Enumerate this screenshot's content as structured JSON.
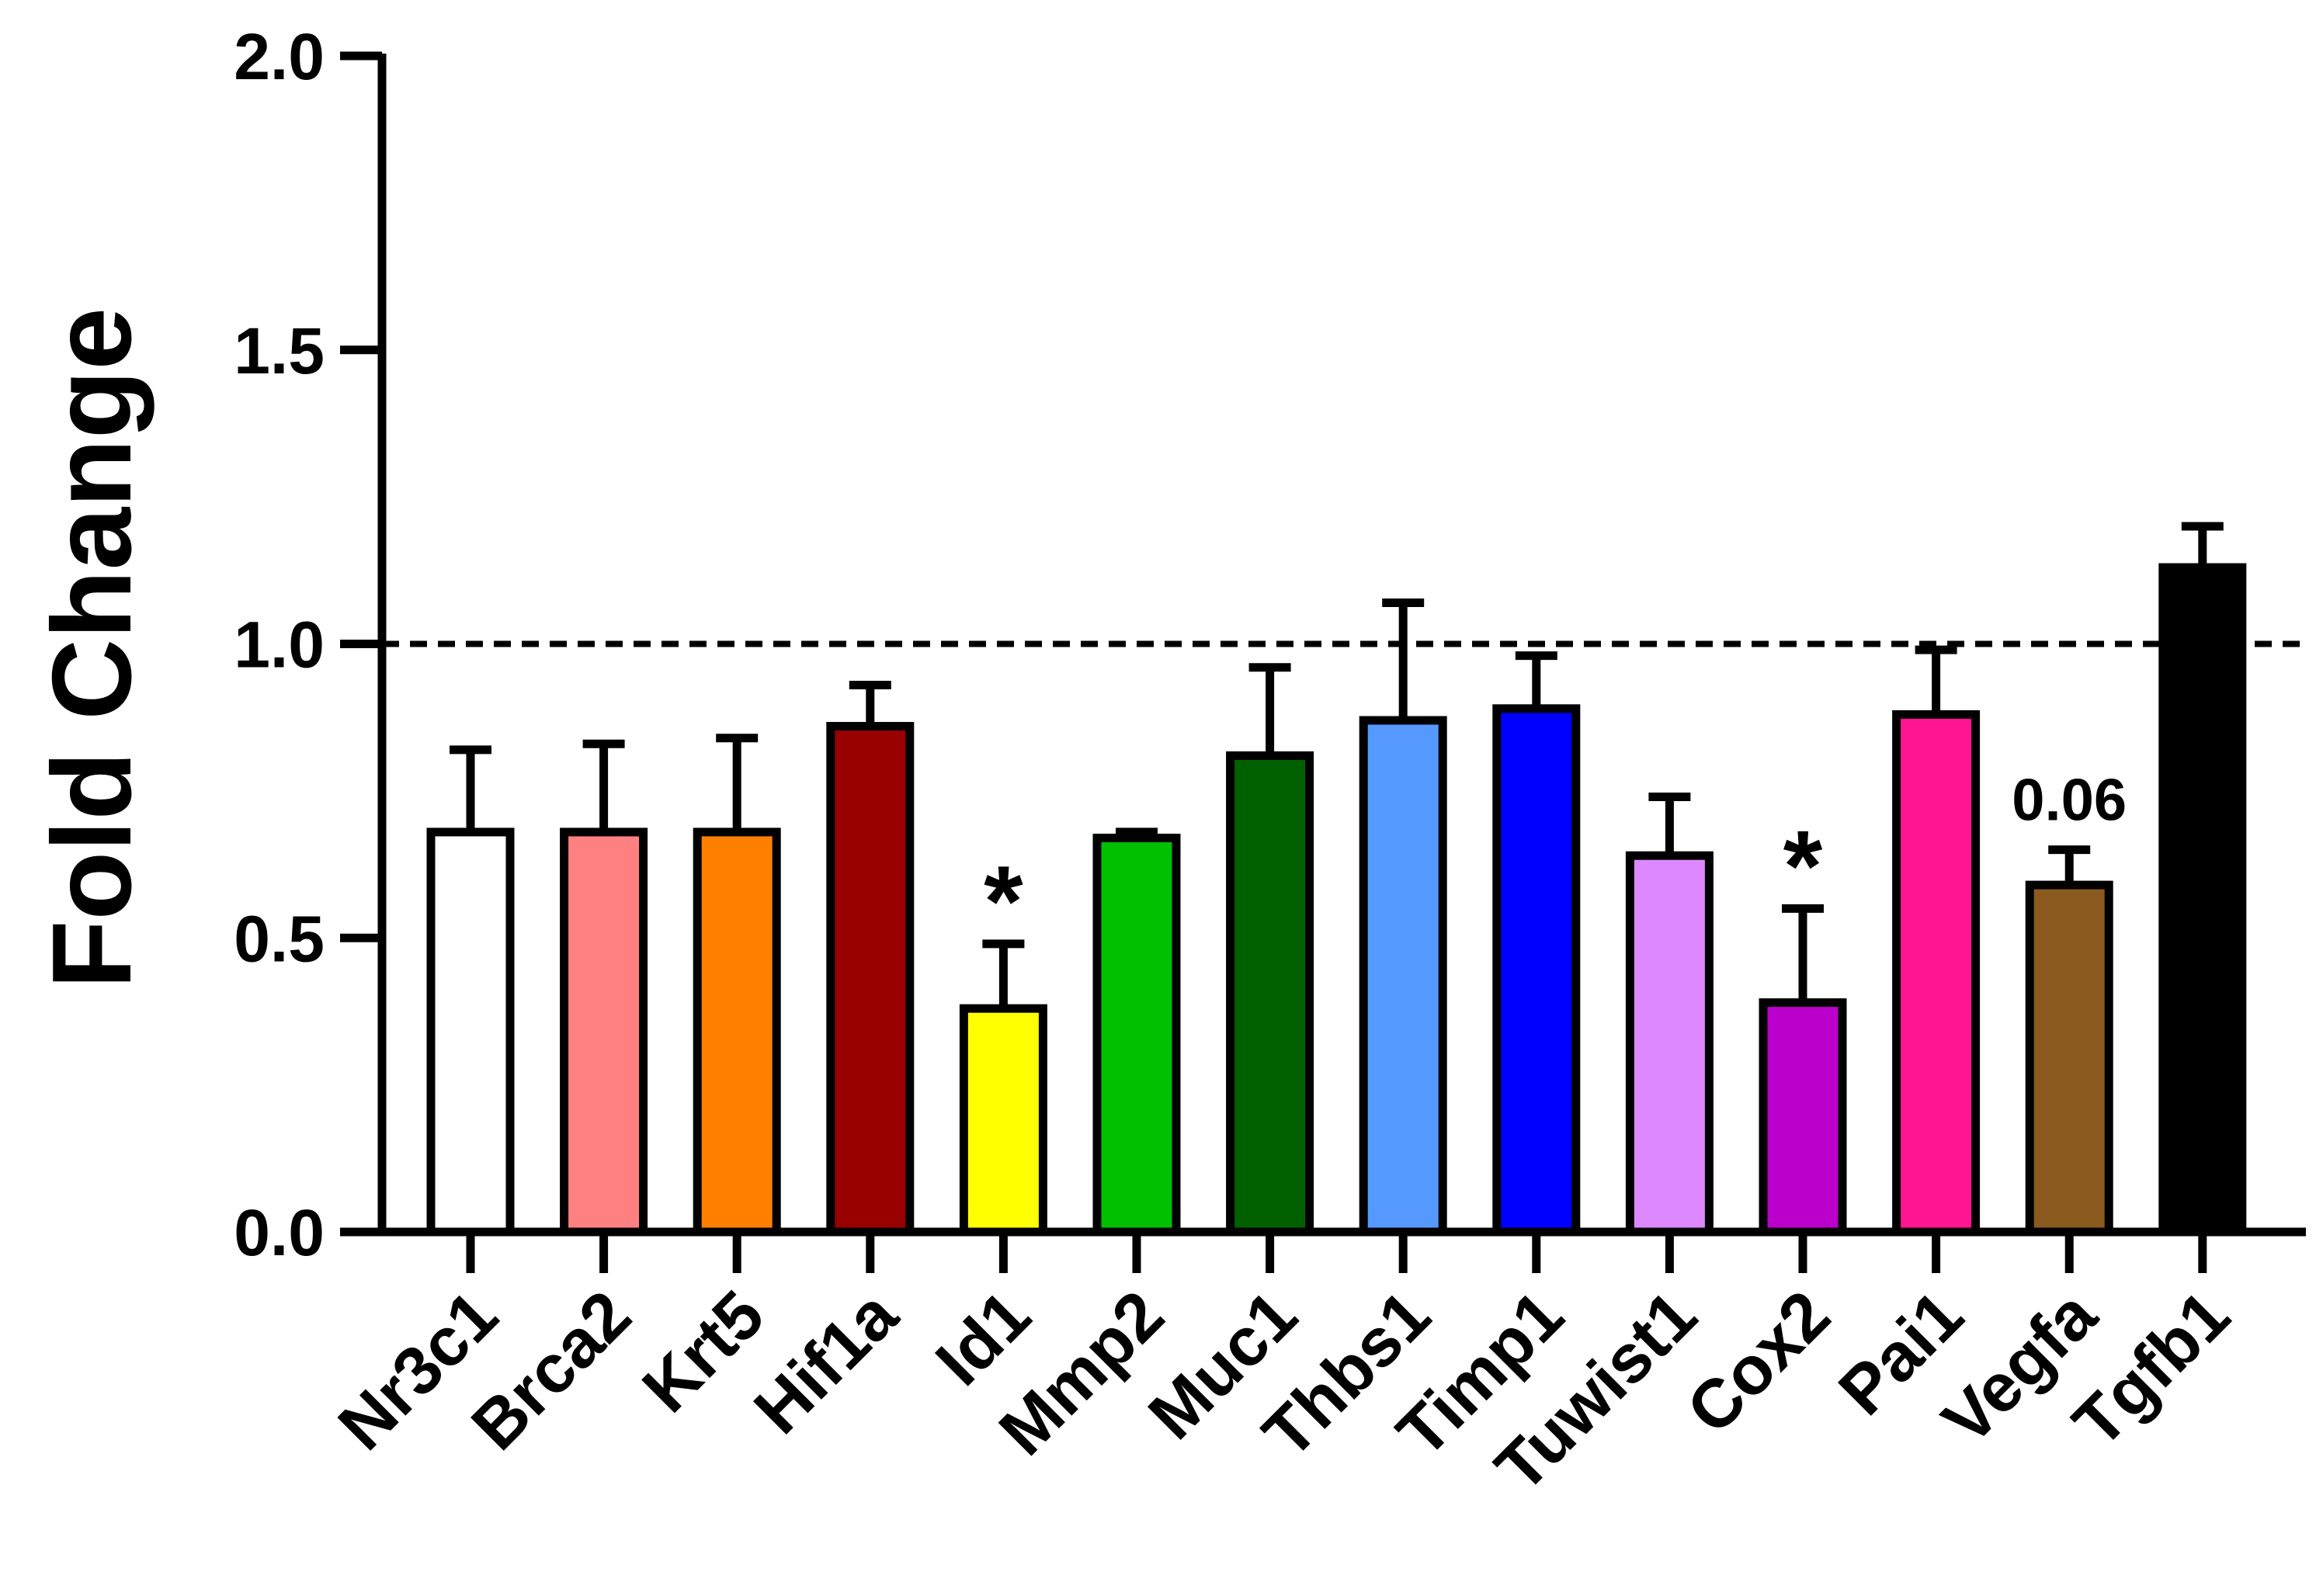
{
  "chart_data": {
    "type": "bar",
    "title": "",
    "xlabel": "",
    "ylabel": "Fold Change",
    "ylim": [
      0,
      2.0
    ],
    "yticks": [
      "0.0",
      "0.5",
      "1.0",
      "1.5",
      "2.0"
    ],
    "ytick_values": [
      0,
      0.5,
      1.0,
      1.5,
      2.0
    ],
    "reference_line": {
      "value": 1.0,
      "style": "dashed"
    },
    "grid": false,
    "categories": [
      "Nr3c1",
      "Brca2",
      "Krt5",
      "Hif1a",
      "Id1",
      "Mmp2",
      "Muc1",
      "Thbs1",
      "Timp1",
      "Tuwist1",
      "Cox2",
      "Pai1",
      "Vegfa",
      "Tgfb1"
    ],
    "values": [
      0.68,
      0.68,
      0.68,
      0.86,
      0.38,
      0.67,
      0.81,
      0.87,
      0.89,
      0.64,
      0.39,
      0.88,
      0.59,
      1.13
    ],
    "errors": [
      0.14,
      0.15,
      0.16,
      0.07,
      0.11,
      0.01,
      0.15,
      0.2,
      0.09,
      0.1,
      0.16,
      0.11,
      0.06,
      0.07
    ],
    "colors": [
      "#ffffff",
      "#ff8080",
      "#ff8000",
      "#990000",
      "#ffff00",
      "#00c000",
      "#006000",
      "#5599ff",
      "#0000ff",
      "#dd88ff",
      "#bb00cc",
      "#ff1493",
      "#8b5a1e",
      "#000000"
    ],
    "annotations": [
      {
        "category": "Id1",
        "text": "*"
      },
      {
        "category": "Cox2",
        "text": "*"
      },
      {
        "category": "Vegfa",
        "text": "0.06"
      }
    ]
  }
}
